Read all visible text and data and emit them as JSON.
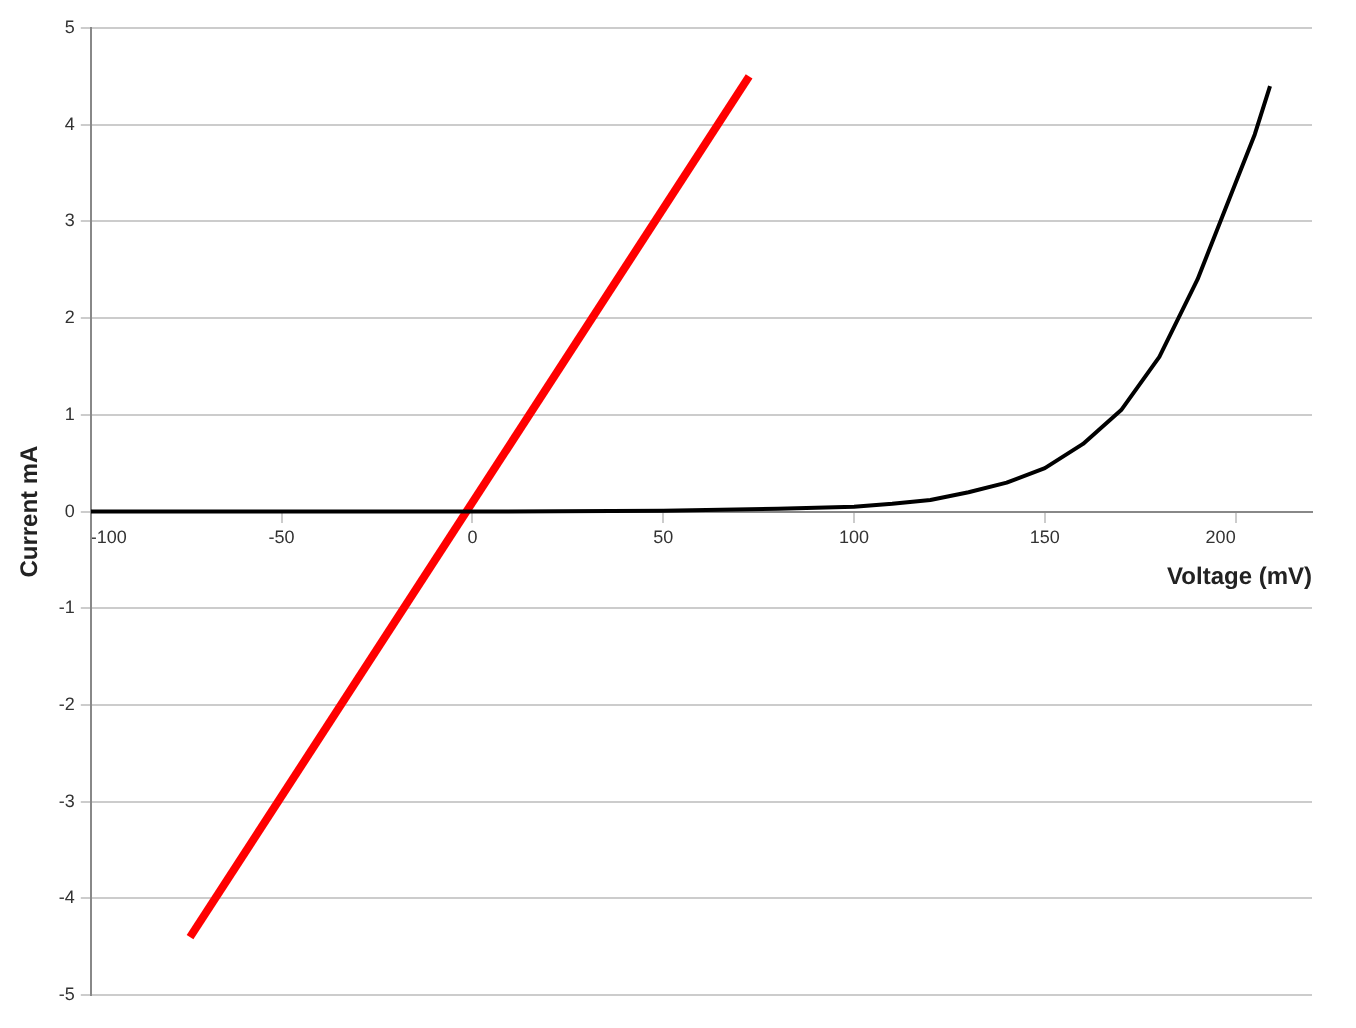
{
  "chart_data": {
    "type": "line",
    "xlabel": "Voltage (mV)",
    "ylabel": "Current mA",
    "xlim": [
      -100,
      220
    ],
    "xticks": [
      -100,
      -50,
      0,
      50,
      100,
      150,
      200
    ],
    "ylim": [
      -5,
      5
    ],
    "yticks": [
      -5,
      -4,
      -3,
      -2,
      -1,
      0,
      1,
      2,
      3,
      4,
      5
    ],
    "grid": "y",
    "legend": false,
    "marker": "none",
    "line_style": "solid",
    "series": [
      {
        "color": "#000000",
        "x": [
          -100,
          -50,
          0,
          50,
          80,
          100,
          110,
          120,
          130,
          140,
          150,
          160,
          170,
          180,
          190,
          200,
          205,
          209
        ],
        "values": [
          0,
          0,
          0,
          0.01,
          0.03,
          0.05,
          0.08,
          0.12,
          0.2,
          0.3,
          0.45,
          0.7,
          1.05,
          1.6,
          2.4,
          3.4,
          3.9,
          4.4
        ]
      },
      {
        "color": "#ff0000",
        "x": [
          -74,
          72.5
        ],
        "values": [
          -4.4,
          4.5
        ]
      }
    ]
  }
}
